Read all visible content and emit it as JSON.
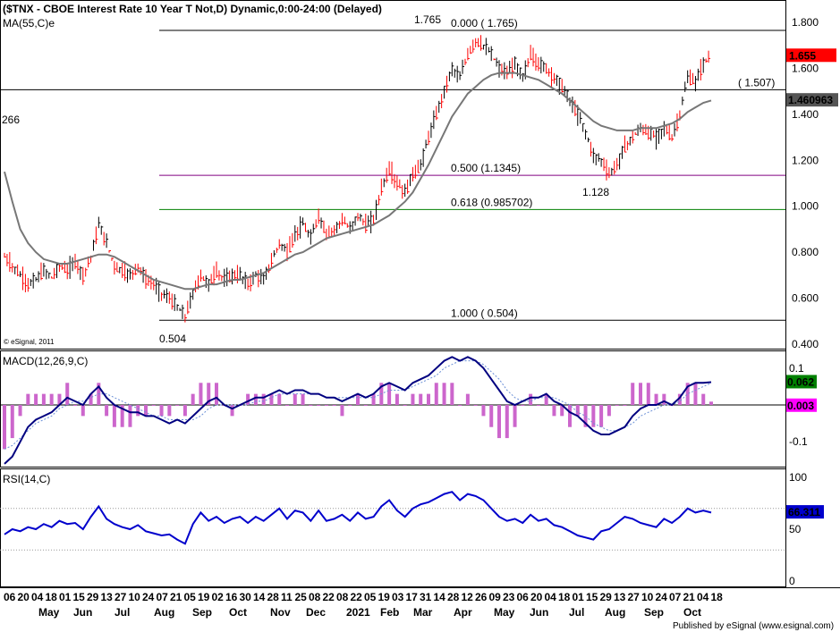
{
  "chart_data": [
    {
      "type": "ohlc",
      "title": "($TNX - CBOE Interest Rate 10 Year T Not,D) Dynamic,0:00-24:00 (Delayed)",
      "indicator_label": "MA(55,C)e",
      "left_partial_label": "266",
      "copyright": "© eSignal, 2011",
      "y_ticks": [
        "1.800",
        "1.600",
        "1.400",
        "1.200",
        "1.000",
        "0.800",
        "0.600",
        "0.400"
      ],
      "ylim": [
        0.4,
        1.85
      ],
      "fib_levels": [
        {
          "name": "fib-0",
          "value": 1.765,
          "label": "0.000 ( 1.765)",
          "color": "#000000"
        },
        {
          "name": "fib-50",
          "value": 1.1345,
          "label": "0.500 (1.1345)",
          "color": "#800080"
        },
        {
          "name": "fib-618",
          "value": 0.985702,
          "label": "0.618 (0.985702)",
          "color": "#008000"
        },
        {
          "name": "fib-100",
          "value": 0.504,
          "label": "1.000 ( 0.504)",
          "color": "#000000"
        }
      ],
      "hline": {
        "value": 1.507,
        "label": "( 1.507)"
      },
      "annotations": [
        {
          "text": "1.765",
          "value": 1.765
        },
        {
          "text": "0.504",
          "value": 0.504
        },
        {
          "text": "1.128",
          "value": 1.128
        }
      ],
      "last_price": {
        "value": 1.655,
        "label": "1.655",
        "color": "#ff0000"
      },
      "ma_value": {
        "value": 1.460963,
        "label": "1.460963",
        "color": "#555555"
      },
      "close_series": [
        0.78,
        0.74,
        0.7,
        0.66,
        0.68,
        0.72,
        0.69,
        0.74,
        0.72,
        0.76,
        0.7,
        0.78,
        0.92,
        0.84,
        0.74,
        0.72,
        0.7,
        0.74,
        0.68,
        0.66,
        0.62,
        0.6,
        0.56,
        0.52,
        0.62,
        0.7,
        0.66,
        0.72,
        0.68,
        0.7,
        0.7,
        0.66,
        0.7,
        0.68,
        0.76,
        0.84,
        0.8,
        0.88,
        0.92,
        0.86,
        0.96,
        0.88,
        0.9,
        0.94,
        0.9,
        0.96,
        0.92,
        0.94,
        1.08,
        1.16,
        1.1,
        1.06,
        1.14,
        1.18,
        1.3,
        1.4,
        1.5,
        1.6,
        1.56,
        1.66,
        1.72,
        1.7,
        1.66,
        1.6,
        1.58,
        1.62,
        1.56,
        1.66,
        1.62,
        1.6,
        1.56,
        1.52,
        1.46,
        1.4,
        1.32,
        1.22,
        1.2,
        1.14,
        1.18,
        1.26,
        1.3,
        1.34,
        1.32,
        1.3,
        1.34,
        1.3,
        1.4,
        1.56,
        1.54,
        1.62,
        1.66
      ],
      "ma_series": [
        1.15,
        1.02,
        0.9,
        0.84,
        0.8,
        0.77,
        0.76,
        0.75,
        0.75,
        0.76,
        0.77,
        0.78,
        0.79,
        0.79,
        0.78,
        0.76,
        0.74,
        0.72,
        0.7,
        0.68,
        0.67,
        0.66,
        0.65,
        0.64,
        0.64,
        0.65,
        0.66,
        0.66,
        0.67,
        0.68,
        0.68,
        0.69,
        0.7,
        0.71,
        0.73,
        0.75,
        0.77,
        0.79,
        0.8,
        0.82,
        0.84,
        0.86,
        0.87,
        0.88,
        0.89,
        0.9,
        0.91,
        0.92,
        0.94,
        0.96,
        0.99,
        1.02,
        1.06,
        1.12,
        1.18,
        1.25,
        1.32,
        1.39,
        1.44,
        1.49,
        1.52,
        1.55,
        1.57,
        1.58,
        1.58,
        1.58,
        1.57,
        1.56,
        1.55,
        1.53,
        1.51,
        1.49,
        1.46,
        1.43,
        1.4,
        1.37,
        1.35,
        1.34,
        1.33,
        1.33,
        1.33,
        1.34,
        1.34,
        1.34,
        1.35,
        1.36,
        1.38,
        1.41,
        1.43,
        1.45,
        1.46
      ]
    },
    {
      "type": "line",
      "title": "MACD(12,26,9,C)",
      "y_ticks": [
        "0.1",
        "-0.1"
      ],
      "ylim": [
        -0.16,
        0.14
      ],
      "macd_value": {
        "value": 0.062,
        "label": "0.062",
        "color": "#008000"
      },
      "signal_value": {
        "value": 0.003,
        "label": "0.003",
        "color": "#ff00ff"
      },
      "macd_series": [
        -0.16,
        -0.14,
        -0.1,
        -0.06,
        -0.04,
        -0.03,
        -0.02,
        0.0,
        0.02,
        0.01,
        0.0,
        0.03,
        0.05,
        0.02,
        0.0,
        -0.01,
        -0.02,
        -0.02,
        -0.03,
        -0.03,
        -0.04,
        -0.05,
        -0.04,
        -0.05,
        -0.03,
        -0.01,
        0.01,
        0.02,
        0.0,
        -0.01,
        0.0,
        0.01,
        0.02,
        0.02,
        0.03,
        0.04,
        0.03,
        0.04,
        0.04,
        0.03,
        0.03,
        0.02,
        0.02,
        0.01,
        0.02,
        0.03,
        0.02,
        0.03,
        0.05,
        0.06,
        0.05,
        0.04,
        0.06,
        0.07,
        0.08,
        0.1,
        0.12,
        0.13,
        0.12,
        0.13,
        0.12,
        0.1,
        0.07,
        0.04,
        0.01,
        0.0,
        0.01,
        0.02,
        0.02,
        0.03,
        0.01,
        0.0,
        -0.02,
        -0.03,
        -0.05,
        -0.07,
        -0.08,
        -0.08,
        -0.07,
        -0.06,
        -0.03,
        -0.01,
        0.0,
        0.0,
        0.01,
        0.0,
        0.02,
        0.05,
        0.06,
        0.06,
        0.062
      ],
      "signal_series": [
        -0.12,
        -0.11,
        -0.09,
        -0.07,
        -0.05,
        -0.04,
        -0.03,
        -0.01,
        0.0,
        0.01,
        0.01,
        0.02,
        0.03,
        0.03,
        0.02,
        0.01,
        0.0,
        -0.01,
        -0.02,
        -0.03,
        -0.03,
        -0.04,
        -0.04,
        -0.04,
        -0.04,
        -0.03,
        -0.01,
        0.0,
        0.0,
        0.0,
        0.0,
        0.0,
        0.01,
        0.01,
        0.02,
        0.03,
        0.03,
        0.03,
        0.03,
        0.03,
        0.03,
        0.02,
        0.02,
        0.02,
        0.02,
        0.02,
        0.02,
        0.02,
        0.03,
        0.04,
        0.04,
        0.04,
        0.05,
        0.06,
        0.07,
        0.08,
        0.1,
        0.11,
        0.12,
        0.12,
        0.12,
        0.11,
        0.09,
        0.07,
        0.04,
        0.02,
        0.01,
        0.01,
        0.02,
        0.02,
        0.02,
        0.01,
        0.0,
        -0.02,
        -0.03,
        -0.05,
        -0.06,
        -0.07,
        -0.07,
        -0.06,
        -0.05,
        -0.03,
        -0.02,
        -0.01,
        0.0,
        0.0,
        0.01,
        0.03,
        0.04,
        0.05,
        0.059
      ]
    },
    {
      "type": "line",
      "title": "RSI(14,C)",
      "y_ticks": [
        "100",
        "50",
        "0"
      ],
      "ylim": [
        0,
        100
      ],
      "rsi_value": {
        "value": 66.311,
        "label": "66.311",
        "color": "#0000cc"
      },
      "rsi_series": [
        45,
        50,
        48,
        52,
        50,
        55,
        52,
        58,
        55,
        56,
        50,
        62,
        72,
        60,
        55,
        52,
        50,
        54,
        48,
        46,
        44,
        45,
        40,
        36,
        55,
        66,
        58,
        62,
        56,
        60,
        62,
        56,
        62,
        58,
        64,
        70,
        60,
        68,
        66,
        58,
        68,
        58,
        60,
        64,
        58,
        66,
        60,
        62,
        72,
        78,
        68,
        62,
        70,
        74,
        76,
        80,
        84,
        86,
        78,
        84,
        82,
        78,
        70,
        62,
        58,
        60,
        56,
        64,
        58,
        60,
        54,
        52,
        48,
        44,
        42,
        40,
        48,
        50,
        56,
        62,
        60,
        56,
        54,
        52,
        60,
        56,
        62,
        70,
        66,
        68,
        66
      ]
    }
  ],
  "x_axis": {
    "day_labels": [
      "06",
      "20",
      "04",
      "18",
      "01",
      "15",
      "29",
      "13",
      "27",
      "10",
      "24",
      "07",
      "21",
      "05",
      "19",
      "02",
      "16",
      "30",
      "14",
      "28",
      "11",
      "25",
      "08",
      "22",
      "08",
      "22",
      "05",
      "19",
      "03",
      "17",
      "31",
      "14",
      "28",
      "12",
      "26",
      "09",
      "23",
      "06",
      "20",
      "04",
      "18",
      "01",
      "15",
      "29",
      "13",
      "27",
      "10",
      "24",
      "07",
      "21",
      "04",
      "18"
    ],
    "month_labels": [
      "May",
      "Jun",
      "Jul",
      "Aug",
      "Sep",
      "Oct",
      "Nov",
      "Dec",
      "2021",
      "Feb",
      "Mar",
      "Apr",
      "May",
      "Jun",
      "Jul",
      "Aug",
      "Sep",
      "Oct"
    ]
  },
  "footer": "Published by eSignal (www.esignal.com)"
}
